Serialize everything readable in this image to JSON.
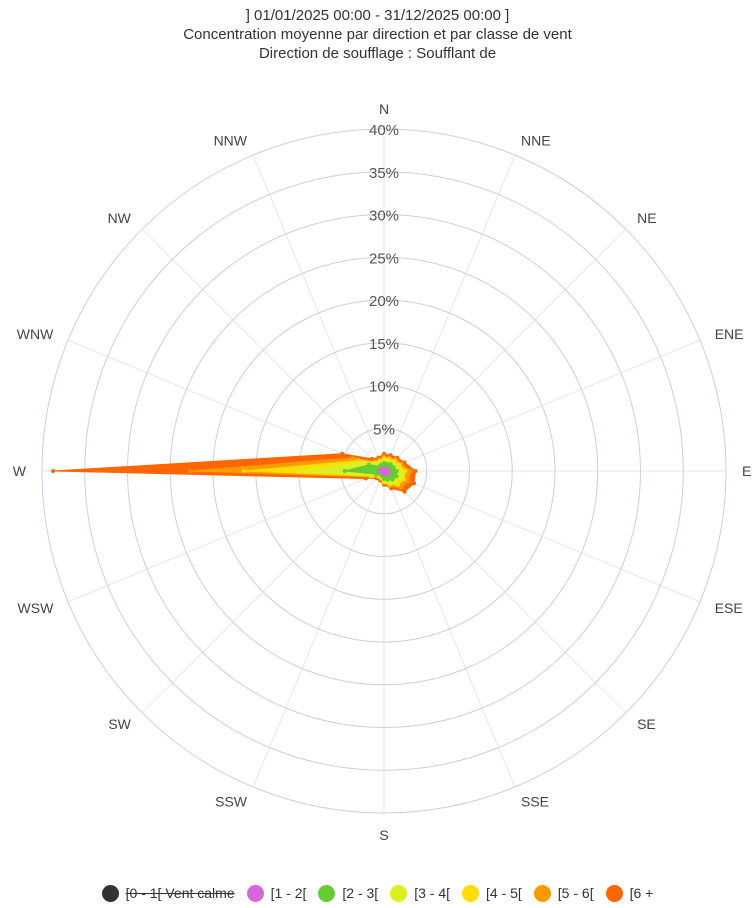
{
  "chart_data": {
    "type": "radar-area-stacked",
    "title_lines": [
      "] 01/01/2025 00:00 - 31/12/2025 00:00 ]",
      "Concentration moyenne par direction et par classe de vent",
      "Direction de soufflage : Soufflant de"
    ],
    "directions": [
      "N",
      "NNE",
      "NE",
      "ENE",
      "E",
      "ESE",
      "SE",
      "SSE",
      "S",
      "SSW",
      "SW",
      "WSW",
      "W",
      "WNW",
      "NW",
      "NNW"
    ],
    "radial_ticks": [
      "5%",
      "10%",
      "15%",
      "20%",
      "25%",
      "30%",
      "35%",
      "40%"
    ],
    "rmax": 40,
    "series": [
      {
        "name": "[0 - 1[ Vent calme",
        "color": "#333333",
        "hidden": true,
        "values": [
          0,
          0,
          0,
          0,
          0,
          0,
          0,
          0,
          0,
          0,
          0,
          0,
          0,
          0,
          0,
          0
        ]
      },
      {
        "name": "[1 - 2[",
        "color": "#d966d6",
        "hidden": false,
        "values": [
          0.3,
          0.3,
          0.4,
          0.4,
          0.5,
          0.6,
          0.5,
          0.4,
          0.3,
          0.2,
          0.2,
          0.3,
          0.6,
          0.4,
          0.3,
          0.3
        ]
      },
      {
        "name": "[2 - 3[",
        "color": "#66cc33",
        "hidden": false,
        "values": [
          0.6,
          0.6,
          0.7,
          0.8,
          1.0,
          1.0,
          0.9,
          0.7,
          0.6,
          0.4,
          0.4,
          0.7,
          4.0,
          1.5,
          0.5,
          0.5
        ]
      },
      {
        "name": "[3 - 4[",
        "color": "#ddee22",
        "hidden": false,
        "values": [
          0.4,
          0.4,
          0.4,
          0.5,
          0.7,
          0.6,
          0.6,
          0.4,
          0.3,
          0.2,
          0.2,
          0.4,
          5.5,
          0.8,
          0.4,
          0.3
        ]
      },
      {
        "name": "[4 - 5[",
        "color": "#ffdd00",
        "hidden": false,
        "values": [
          0.2,
          0.2,
          0.2,
          0.3,
          0.3,
          0.3,
          0.3,
          0.2,
          0.1,
          0.1,
          0.1,
          0.2,
          6.3,
          0.5,
          0.2,
          0.2
        ]
      },
      {
        "name": "[5 - 6[",
        "color": "#ff9900",
        "hidden": false,
        "values": [
          0.2,
          0.2,
          0.2,
          0.2,
          0.6,
          0.6,
          0.5,
          0.2,
          0.1,
          0.1,
          0.1,
          0.2,
          6.3,
          0.8,
          0.2,
          0.2
        ]
      },
      {
        "name": "[6 +",
        "color": "#ff6600",
        "hidden": false,
        "values": [
          0.3,
          0.3,
          0.3,
          0.4,
          0.6,
          0.7,
          0.6,
          0.3,
          0.2,
          0.2,
          0.2,
          0.5,
          16.0,
          1.3,
          0.4,
          0.2
        ]
      }
    ],
    "grid_color": "#ccccee",
    "spoke_color": "#e6e6e6",
    "legend_position": "bottom-center"
  }
}
